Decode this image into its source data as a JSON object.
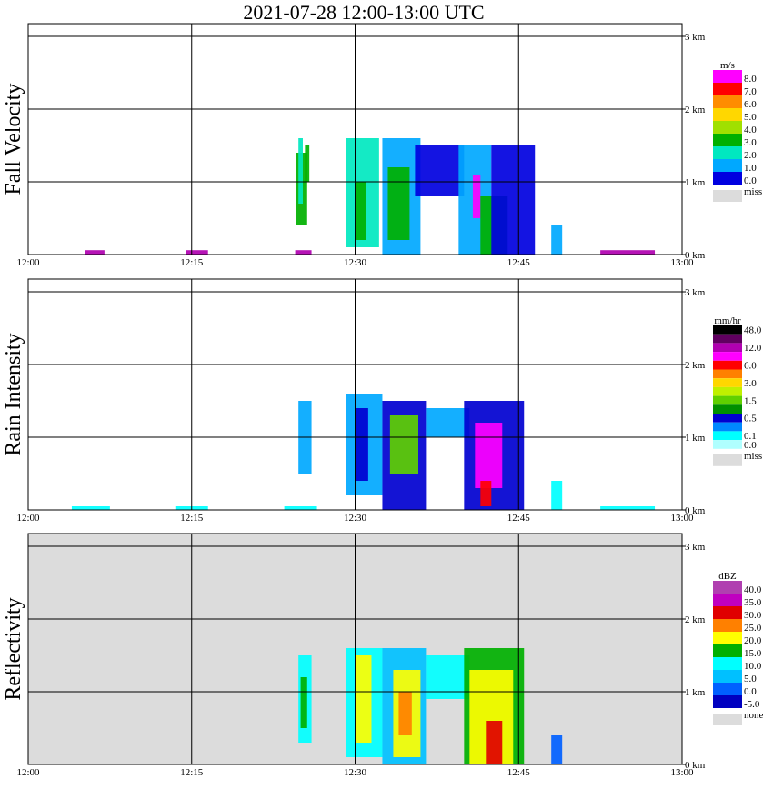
{
  "title": "2021-07-28   12:00-13:00 UTC",
  "x_ticks": [
    "12:00",
    "12:15",
    "12:30",
    "12:45",
    "13:00"
  ],
  "height_ticks": [
    "0 km",
    "1 km",
    "2 km",
    "3 km"
  ],
  "colors": {
    "panel_bg": "#ffffff",
    "refl_bg": "#dcdcdc",
    "grid": "#000000",
    "miss": "#dcdcdc"
  },
  "panels": [
    {
      "ylabel": "Fall Velocity",
      "unit": "m/s",
      "legend": [
        {
          "label": "8.0",
          "color": "#ff00ff"
        },
        {
          "label": "7.0",
          "color": "#ff0000"
        },
        {
          "label": "6.0",
          "color": "#ff8c00"
        },
        {
          "label": "5.0",
          "color": "#ffd700"
        },
        {
          "label": "4.0",
          "color": "#a0e000"
        },
        {
          "label": "3.0",
          "color": "#00b000"
        },
        {
          "label": "2.0",
          "color": "#00e8c0"
        },
        {
          "label": "1.0",
          "color": "#00a8ff"
        },
        {
          "label": "0.0",
          "color": "#0000e0"
        }
      ],
      "miss_label": "miss"
    },
    {
      "ylabel": "Rain Intensity",
      "unit": "mm/hr",
      "legend": [
        {
          "label": "48.0",
          "color": "#000000"
        },
        {
          "label": "",
          "color": "#600060"
        },
        {
          "label": "12.0",
          "color": "#b000b0"
        },
        {
          "label": "",
          "color": "#ff00ff"
        },
        {
          "label": "6.0",
          "color": "#ff0000"
        },
        {
          "label": "",
          "color": "#ff8000"
        },
        {
          "label": "3.0",
          "color": "#ffd700"
        },
        {
          "label": "",
          "color": "#c0f000"
        },
        {
          "label": "1.5",
          "color": "#60d000"
        },
        {
          "label": "",
          "color": "#009000"
        },
        {
          "label": "0.5",
          "color": "#0000d0"
        },
        {
          "label": "",
          "color": "#0088ff"
        },
        {
          "label": "0.1",
          "color": "#00ffff"
        },
        {
          "label": "0.0",
          "color": "#b0ffff"
        }
      ],
      "miss_label": "miss"
    },
    {
      "ylabel": "Reflectivity",
      "unit": "dBZ",
      "legend": [
        {
          "label": "40.0",
          "color": "#b040b0"
        },
        {
          "label": "35.0",
          "color": "#c000c0"
        },
        {
          "label": "30.0",
          "color": "#e00000"
        },
        {
          "label": "25.0",
          "color": "#ff8000"
        },
        {
          "label": "20.0",
          "color": "#ffff00"
        },
        {
          "label": "15.0",
          "color": "#00b000"
        },
        {
          "label": "10.0",
          "color": "#00ffff"
        },
        {
          "label": "5.0",
          "color": "#00c0ff"
        },
        {
          "label": "0.0",
          "color": "#0060ff"
        },
        {
          "label": "-5.0",
          "color": "#0000c0"
        }
      ],
      "miss_label": "none"
    }
  ],
  "chart_data": [
    {
      "type": "heatmap",
      "title": "2021-07-28   12:00-13:00 UTC",
      "ylabel": "Fall Velocity",
      "unit": "m/s",
      "xlim": [
        "12:00",
        "13:00"
      ],
      "ylim_km": [
        0,
        3.2
      ],
      "cells": [
        {
          "t0": 24.6,
          "t1": 25.6,
          "h0": 0.4,
          "h1": 1.4,
          "color": "#00b000"
        },
        {
          "t0": 24.8,
          "t1": 25.2,
          "h0": 0.7,
          "h1": 1.6,
          "color": "#00e8c0"
        },
        {
          "t0": 25.4,
          "t1": 25.8,
          "h0": 1.0,
          "h1": 1.5,
          "color": "#00b000"
        },
        {
          "t0": 29.2,
          "t1": 32.2,
          "h0": 0.1,
          "h1": 1.6,
          "color": "#00e8c0"
        },
        {
          "t0": 30.0,
          "t1": 31.0,
          "h0": 0.2,
          "h1": 1.0,
          "color": "#00b000"
        },
        {
          "t0": 32.5,
          "t1": 36.0,
          "h0": 0.0,
          "h1": 1.6,
          "color": "#00a8ff"
        },
        {
          "t0": 33.0,
          "t1": 35.0,
          "h0": 0.2,
          "h1": 1.2,
          "color": "#00b000"
        },
        {
          "t0": 35.5,
          "t1": 40.0,
          "h0": 0.8,
          "h1": 1.5,
          "color": "#0000e0"
        },
        {
          "t0": 39.5,
          "t1": 42.5,
          "h0": 0.0,
          "h1": 1.5,
          "color": "#00a8ff"
        },
        {
          "t0": 40.8,
          "t1": 41.5,
          "h0": 0.5,
          "h1": 1.1,
          "color": "#ff00ff"
        },
        {
          "t0": 41.5,
          "t1": 44.0,
          "h0": 0.0,
          "h1": 0.8,
          "color": "#00b000"
        },
        {
          "t0": 42.5,
          "t1": 46.5,
          "h0": 0.0,
          "h1": 1.5,
          "color": "#0000e0"
        },
        {
          "t0": 48.0,
          "t1": 49.0,
          "h0": 0.0,
          "h1": 0.4,
          "color": "#00a8ff"
        },
        {
          "t0": 5.2,
          "t1": 7.0,
          "h0": 0.0,
          "h1": 0.06,
          "color": "#b000b0"
        },
        {
          "t0": 14.5,
          "t1": 16.5,
          "h0": 0.0,
          "h1": 0.06,
          "color": "#b000b0"
        },
        {
          "t0": 24.5,
          "t1": 26.0,
          "h0": 0.0,
          "h1": 0.06,
          "color": "#b000b0"
        },
        {
          "t0": 52.5,
          "t1": 57.5,
          "h0": 0.0,
          "h1": 0.06,
          "color": "#b000b0"
        }
      ]
    },
    {
      "type": "heatmap",
      "ylabel": "Rain Intensity",
      "unit": "mm/hr",
      "xlim": [
        "12:00",
        "13:00"
      ],
      "ylim_km": [
        0,
        3.2
      ],
      "cells": [
        {
          "t0": 24.8,
          "t1": 26.0,
          "h0": 0.5,
          "h1": 1.5,
          "color": "#00a8ff"
        },
        {
          "t0": 29.2,
          "t1": 32.5,
          "h0": 0.2,
          "h1": 1.6,
          "color": "#00a8ff"
        },
        {
          "t0": 30.0,
          "t1": 31.2,
          "h0": 0.4,
          "h1": 1.4,
          "color": "#0000d0"
        },
        {
          "t0": 32.5,
          "t1": 36.5,
          "h0": 0.0,
          "h1": 1.5,
          "color": "#0000d0"
        },
        {
          "t0": 33.2,
          "t1": 35.8,
          "h0": 0.5,
          "h1": 1.3,
          "color": "#60d000"
        },
        {
          "t0": 36.5,
          "t1": 40.5,
          "h0": 1.0,
          "h1": 1.4,
          "color": "#00a8ff"
        },
        {
          "t0": 40.0,
          "t1": 45.5,
          "h0": 0.0,
          "h1": 1.5,
          "color": "#0000d0"
        },
        {
          "t0": 41.0,
          "t1": 43.5,
          "h0": 0.3,
          "h1": 1.2,
          "color": "#ff00ff"
        },
        {
          "t0": 41.5,
          "t1": 42.5,
          "h0": 0.05,
          "h1": 0.4,
          "color": "#ff0000"
        },
        {
          "t0": 48.0,
          "t1": 49.0,
          "h0": 0.0,
          "h1": 0.4,
          "color": "#00ffff"
        },
        {
          "t0": 4.0,
          "t1": 7.5,
          "h0": 0.0,
          "h1": 0.05,
          "color": "#00ffff"
        },
        {
          "t0": 13.5,
          "t1": 16.5,
          "h0": 0.0,
          "h1": 0.05,
          "color": "#00ffff"
        },
        {
          "t0": 23.5,
          "t1": 26.5,
          "h0": 0.0,
          "h1": 0.05,
          "color": "#00ffff"
        },
        {
          "t0": 52.5,
          "t1": 57.5,
          "h0": 0.0,
          "h1": 0.05,
          "color": "#00ffff"
        }
      ]
    },
    {
      "type": "heatmap",
      "ylabel": "Reflectivity",
      "unit": "dBZ",
      "xlim": [
        "12:00",
        "13:00"
      ],
      "ylim_km": [
        0,
        3.2
      ],
      "cells": [
        {
          "t0": 24.8,
          "t1": 26.0,
          "h0": 0.3,
          "h1": 1.5,
          "color": "#00ffff"
        },
        {
          "t0": 25.0,
          "t1": 25.6,
          "h0": 0.5,
          "h1": 1.2,
          "color": "#00b000"
        },
        {
          "t0": 29.2,
          "t1": 32.5,
          "h0": 0.1,
          "h1": 1.6,
          "color": "#00ffff"
        },
        {
          "t0": 30.0,
          "t1": 31.5,
          "h0": 0.3,
          "h1": 1.5,
          "color": "#ffff00"
        },
        {
          "t0": 32.5,
          "t1": 36.5,
          "h0": 0.0,
          "h1": 1.6,
          "color": "#00c0ff"
        },
        {
          "t0": 33.5,
          "t1": 36.0,
          "h0": 0.1,
          "h1": 1.3,
          "color": "#ffff00"
        },
        {
          "t0": 34.0,
          "t1": 35.2,
          "h0": 0.4,
          "h1": 1.0,
          "color": "#ff8000"
        },
        {
          "t0": 36.5,
          "t1": 40.5,
          "h0": 0.9,
          "h1": 1.5,
          "color": "#00ffff"
        },
        {
          "t0": 40.0,
          "t1": 45.5,
          "h0": 0.0,
          "h1": 1.6,
          "color": "#00b000"
        },
        {
          "t0": 40.5,
          "t1": 44.5,
          "h0": 0.0,
          "h1": 1.3,
          "color": "#ffff00"
        },
        {
          "t0": 42.0,
          "t1": 43.5,
          "h0": 0.0,
          "h1": 0.6,
          "color": "#e00000"
        },
        {
          "t0": 48.0,
          "t1": 49.0,
          "h0": 0.0,
          "h1": 0.4,
          "color": "#0060ff"
        }
      ]
    }
  ]
}
